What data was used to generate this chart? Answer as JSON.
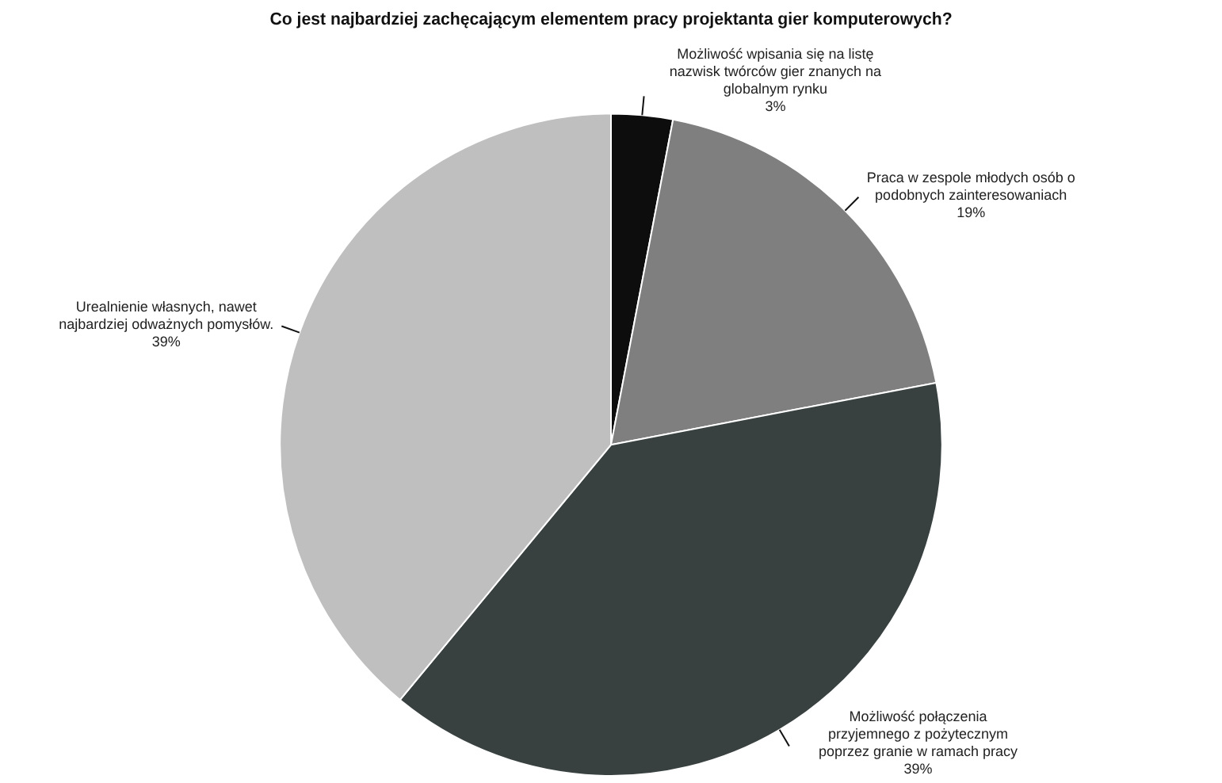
{
  "chart_data": {
    "type": "pie",
    "title": "Co jest najbardziej zachęcającym elementem pracy projektanta gier komputerowych?",
    "categories": [
      "Możliwość wpisania się na listę nazwisk twórców gier znanych na globalnym rynku",
      "Praca w zespole młodych osób o podobnych zainteresowaniach",
      "Możliwość połączenia przyjemnego z pożytecznym poprzez granie w ramach pracy",
      "Urealnienie własnych, nawet najbardziej odważnych pomysłów."
    ],
    "values": [
      3,
      19,
      39,
      39
    ],
    "colors": [
      "#0d0d0d",
      "#7f7f7f",
      "#384140",
      "#bfbfbf"
    ],
    "value_labels": [
      "3%",
      "19%",
      "39%",
      "39%"
    ],
    "legend": false
  }
}
